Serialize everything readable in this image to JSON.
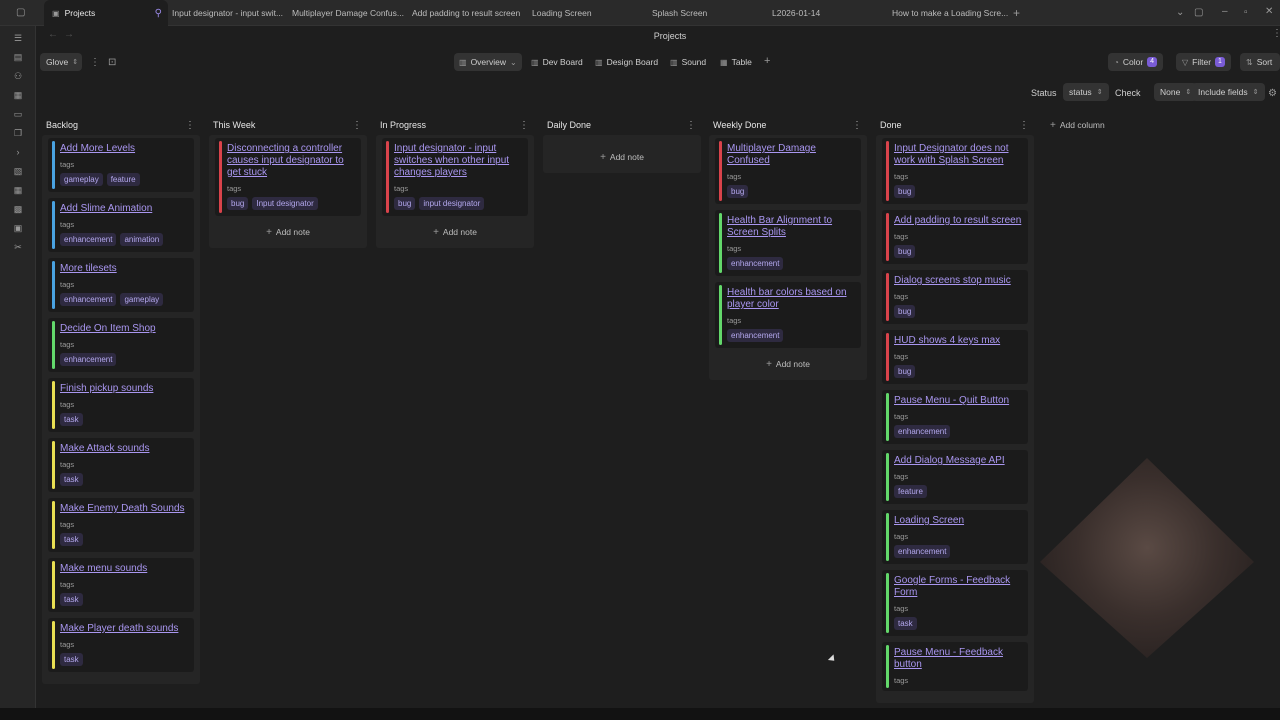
{
  "tabs": [
    {
      "label": "Projects",
      "active": true
    },
    {
      "label": "Input designator - input swit..."
    },
    {
      "label": "Multiplayer Damage Confus..."
    },
    {
      "label": "Add padding to result screen"
    },
    {
      "label": "Loading Screen"
    },
    {
      "label": "Splash Screen"
    },
    {
      "label": "L2026-01-14"
    },
    {
      "label": "How to make a Loading Scre..."
    }
  ],
  "title": "Projects",
  "project_select": "Glove",
  "views": [
    {
      "label": "Overview",
      "icon": "board-icon",
      "active": true
    },
    {
      "label": "Dev Board",
      "icon": "board-icon"
    },
    {
      "label": "Design Board",
      "icon": "board-icon"
    },
    {
      "label": "Sound",
      "icon": "board-icon"
    },
    {
      "label": "Table",
      "icon": "table-icon"
    }
  ],
  "toolbar": {
    "color": "Color",
    "color_count": "4",
    "filter": "Filter",
    "filter_count": "1",
    "sort": "Sort"
  },
  "filters": {
    "status_label": "Status",
    "status_value": "status",
    "check_label": "Check",
    "check_value": "None",
    "include_fields": "Include fields"
  },
  "colors": {
    "red": "#d9434b",
    "blue": "#4aa3e0",
    "green": "#63d86b",
    "yellow": "#e8df52",
    "accent": "#a996f0"
  },
  "add_note": "Add note",
  "add_column": "Add column",
  "tags_label": "tags",
  "columns": [
    {
      "name": "Backlog",
      "cards": [
        {
          "title": "Add More Levels",
          "color": "blue",
          "tags": [
            "gameplay",
            "feature"
          ]
        },
        {
          "title": "Add Slime Animation",
          "color": "blue",
          "tags": [
            "enhancement",
            "animation"
          ]
        },
        {
          "title": "More tilesets",
          "color": "blue",
          "tags": [
            "enhancement",
            "gameplay"
          ]
        },
        {
          "title": "Decide On Item Shop",
          "color": "green",
          "tags": [
            "enhancement"
          ]
        },
        {
          "title": "Finish pickup sounds",
          "color": "yellow",
          "tags": [
            "task"
          ]
        },
        {
          "title": "Make Attack sounds",
          "color": "yellow",
          "tags": [
            "task"
          ]
        },
        {
          "title": "Make Enemy Death Sounds",
          "color": "yellow",
          "tags": [
            "task"
          ]
        },
        {
          "title": "Make menu sounds",
          "color": "yellow",
          "tags": [
            "task"
          ]
        },
        {
          "title": "Make Player death sounds",
          "color": "yellow",
          "tags": [
            "task"
          ]
        }
      ]
    },
    {
      "name": "This Week",
      "add": true,
      "cards": [
        {
          "title": "Disconnecting a controller causes input designator to get stuck",
          "color": "red",
          "tags": [
            "bug",
            "Input designator"
          ]
        }
      ]
    },
    {
      "name": "In Progress",
      "add": true,
      "cards": [
        {
          "title": "Input designator - input switches when other input changes players",
          "color": "red",
          "tags": [
            "bug",
            "input designator"
          ]
        }
      ]
    },
    {
      "name": "Daily Done",
      "add": true,
      "cards": []
    },
    {
      "name": "Weekly Done",
      "add": true,
      "cards": [
        {
          "title": "Multiplayer Damage Confused",
          "color": "red",
          "tags": [
            "bug"
          ]
        },
        {
          "title": "Health Bar Alignment to Screen Splits",
          "color": "green",
          "tags": [
            "enhancement"
          ]
        },
        {
          "title": "Health bar colors based on player color",
          "color": "green",
          "tags": [
            "enhancement"
          ]
        }
      ]
    },
    {
      "name": "Done",
      "cards": [
        {
          "title": "Input Designator does not work with Splash Screen",
          "color": "red",
          "tags": [
            "bug"
          ]
        },
        {
          "title": "Add padding to result screen",
          "color": "red",
          "tags": [
            "bug"
          ]
        },
        {
          "title": "Dialog screens stop music",
          "color": "red",
          "tags": [
            "bug"
          ]
        },
        {
          "title": "HUD shows 4 keys max",
          "color": "red",
          "tags": [
            "bug"
          ]
        },
        {
          "title": "Pause Menu - Quit Button",
          "color": "green",
          "tags": [
            "enhancement"
          ]
        },
        {
          "title": "Add Dialog Message API",
          "color": "green",
          "tags": [
            "feature"
          ]
        },
        {
          "title": "Loading Screen",
          "color": "green",
          "tags": [
            "enhancement"
          ]
        },
        {
          "title": "Google Forms - Feedback Form",
          "color": "green",
          "tags": [
            "task"
          ]
        },
        {
          "title": "Pause Menu - Feedback button",
          "color": "green",
          "tags": []
        }
      ]
    }
  ]
}
